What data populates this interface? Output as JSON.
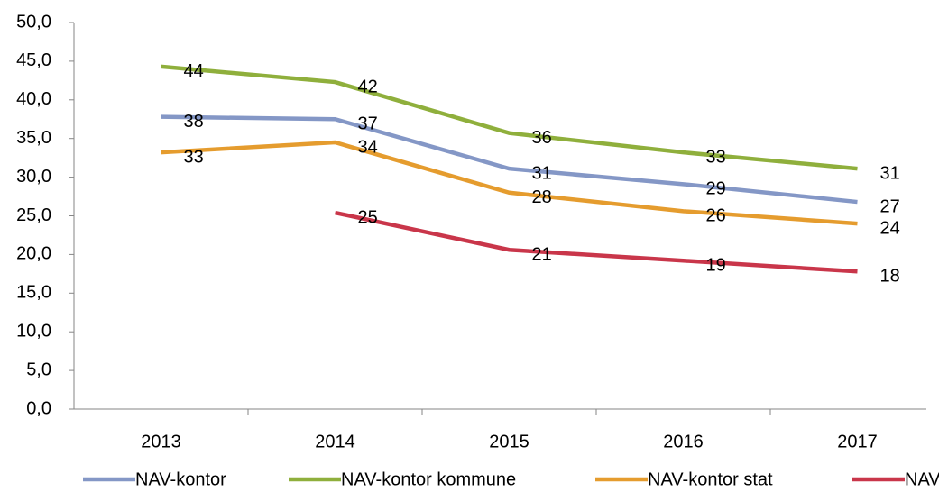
{
  "chart_data": {
    "type": "line",
    "categories": [
      "2013",
      "2014",
      "2015",
      "2016",
      "2017"
    ],
    "series": [
      {
        "name": "NAV-kontor",
        "color": "#8497c6",
        "values": [
          37.8,
          37.5,
          31.1,
          29.1,
          26.8
        ],
        "value_labels": [
          "38",
          "37",
          "31",
          "29",
          "27"
        ]
      },
      {
        "name": "NAV-kontor kommune",
        "color": "#8faf3c",
        "values": [
          44.3,
          42.3,
          35.7,
          33.2,
          31.1
        ],
        "value_labels": [
          "44",
          "42",
          "36",
          "33",
          "31"
        ]
      },
      {
        "name": "NAV-kontor stat",
        "color": "#e59c2e",
        "values": [
          33.2,
          34.5,
          28.0,
          25.6,
          24.0
        ],
        "value_labels": [
          "33",
          "34",
          "28",
          "26",
          "24"
        ]
      },
      {
        "name": "NAV",
        "color": "#c9364a",
        "values": [
          null,
          25.4,
          20.6,
          19.2,
          17.8
        ],
        "value_labels": [
          null,
          "25",
          "21",
          "19",
          "18"
        ]
      }
    ],
    "ylim": [
      0,
      50
    ],
    "yticks": [
      {
        "value": 0,
        "label": "0,0"
      },
      {
        "value": 5,
        "label": "5,0"
      },
      {
        "value": 10,
        "label": "10,0"
      },
      {
        "value": 15,
        "label": "15,0"
      },
      {
        "value": 20,
        "label": "20,0"
      },
      {
        "value": 25,
        "label": "25,0"
      },
      {
        "value": 30,
        "label": "30,0"
      },
      {
        "value": 35,
        "label": "35,0"
      },
      {
        "value": 40,
        "label": "40,0"
      },
      {
        "value": 45,
        "label": "45,0"
      },
      {
        "value": 50,
        "label": "50,0"
      }
    ],
    "grid": false,
    "legend": "bottom"
  }
}
